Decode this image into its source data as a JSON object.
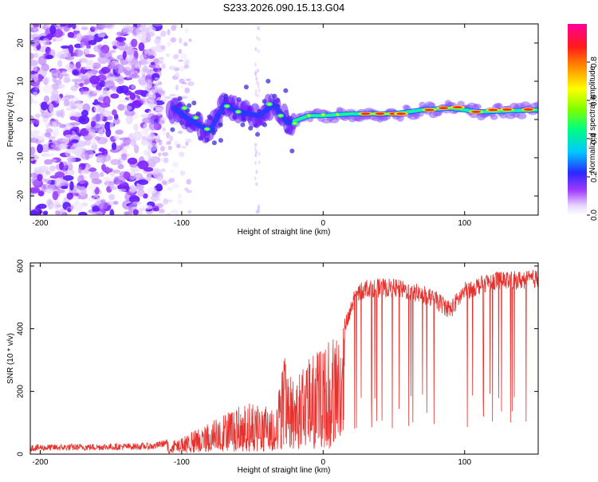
{
  "title": "S233.2026.090.15.13.G04",
  "chart_data": [
    {
      "type": "heatmap",
      "name": "spectrogram",
      "xlabel": "Height of straight line (km)",
      "ylabel": "Frequency (Hz)",
      "xlim": [
        -207,
        152
      ],
      "ylim": [
        -25,
        25
      ],
      "xticks": [
        -200,
        -100,
        0,
        100
      ],
      "yticks": [
        -20,
        -10,
        0,
        10,
        20
      ],
      "colorbar": {
        "label": "Normalized spectral amplitude",
        "range": [
          0,
          1
        ],
        "ticks": [
          0.0,
          0.2,
          0.4,
          0.6,
          0.8
        ],
        "colormap": "rainbow (white → violet → blue → cyan → green → yellow → red → magenta)"
      },
      "signal_track": [
        {
          "x": -105,
          "y": 3
        },
        {
          "x": -95,
          "y": 0
        },
        {
          "x": -80,
          "y": -3
        },
        {
          "x": -70,
          "y": 4
        },
        {
          "x": -60,
          "y": 2
        },
        {
          "x": -45,
          "y": 1
        },
        {
          "x": -35,
          "y": 4
        },
        {
          "x": -25,
          "y": -1
        },
        {
          "x": -10,
          "y": 1
        },
        {
          "x": 0,
          "y": 1
        },
        {
          "x": 20,
          "y": 1.5
        },
        {
          "x": 50,
          "y": 1.5
        },
        {
          "x": 70,
          "y": 2.5
        },
        {
          "x": 90,
          "y": 3
        },
        {
          "x": 110,
          "y": 2
        },
        {
          "x": 150,
          "y": 2.5
        }
      ]
    },
    {
      "type": "line",
      "name": "snr",
      "xlabel": "Height of straight line (km)",
      "ylabel": "SNR (10 * v/v)",
      "xlim": [
        -207,
        152
      ],
      "ylim": [
        0,
        610
      ],
      "xticks": [
        -200,
        -100,
        0,
        100
      ],
      "yticks": [
        0,
        200,
        400,
        600
      ],
      "color": "#e8312d",
      "envelope": [
        {
          "x": -207,
          "y": 20
        },
        {
          "x": -120,
          "y": 25
        },
        {
          "x": -100,
          "y": 50
        },
        {
          "x": -85,
          "y": 90
        },
        {
          "x": -70,
          "y": 120
        },
        {
          "x": -60,
          "y": 150
        },
        {
          "x": -50,
          "y": 160
        },
        {
          "x": -40,
          "y": 150
        },
        {
          "x": -33,
          "y": 140
        },
        {
          "x": -28,
          "y": 300
        },
        {
          "x": -20,
          "y": 230
        },
        {
          "x": -10,
          "y": 290
        },
        {
          "x": 0,
          "y": 330
        },
        {
          "x": 10,
          "y": 370
        },
        {
          "x": 18,
          "y": 430
        },
        {
          "x": 22,
          "y": 500
        },
        {
          "x": 30,
          "y": 530
        },
        {
          "x": 50,
          "y": 530
        },
        {
          "x": 70,
          "y": 510
        },
        {
          "x": 80,
          "y": 490
        },
        {
          "x": 90,
          "y": 460
        },
        {
          "x": 100,
          "y": 520
        },
        {
          "x": 120,
          "y": 555
        },
        {
          "x": 140,
          "y": 555
        },
        {
          "x": 152,
          "y": 560
        }
      ]
    }
  ]
}
